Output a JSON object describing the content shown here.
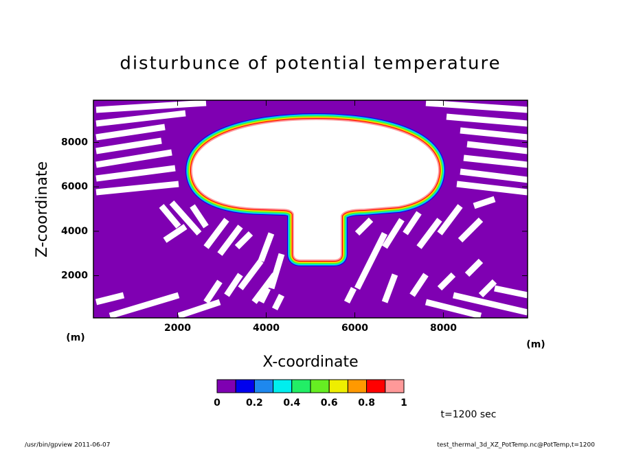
{
  "chart_data": {
    "type": "contour",
    "title": "disturbunce of potential temperature",
    "xlabel": "X-coordinate",
    "ylabel": "Z-coordinate",
    "x_unit": "(m)",
    "y_unit": "(m)",
    "xlim": [
      100,
      9900
    ],
    "ylim": [
      100,
      9900
    ],
    "xticks": [
      2000,
      4000,
      6000,
      8000
    ],
    "yticks": [
      2000,
      4000,
      6000,
      8000
    ],
    "colorbar": {
      "levels": [
        0,
        0.1,
        0.2,
        0.3,
        0.4,
        0.5,
        0.6,
        0.7,
        0.8,
        0.9,
        1
      ],
      "colors": [
        "#7f00b2",
        "#0000ee",
        "#1e88ee",
        "#00eeee",
        "#22ee66",
        "#66ee22",
        "#eeee00",
        "#ff9900",
        "#ff0000",
        "#ff9999"
      ],
      "ticks": [
        0,
        0.2,
        0.4,
        0.6,
        0.8,
        1
      ]
    },
    "annotation": "t=1200 sec",
    "footer_left": "/usr/bin/gpview   2011-06-07",
    "footer_right": "test_thermal_3d_XZ_PotTemp.nc@PotTemp,t=1200"
  }
}
